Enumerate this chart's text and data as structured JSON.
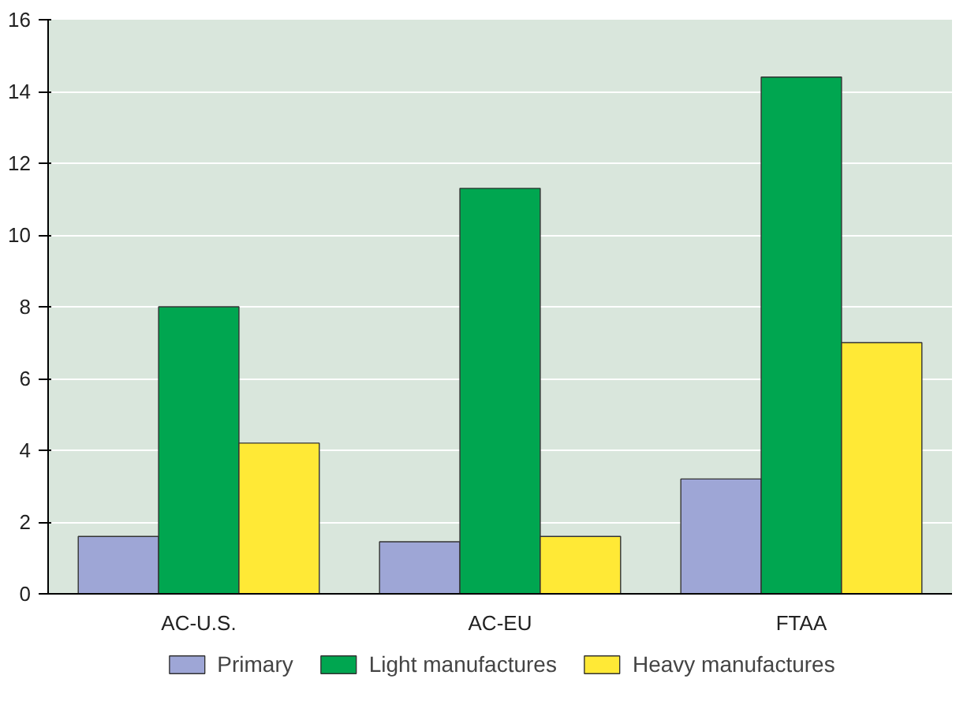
{
  "chart_data": {
    "type": "bar",
    "categories": [
      "AC-U.S.",
      "AC-EU",
      "FTAA"
    ],
    "series": [
      {
        "name": "Primary",
        "color": "#9ea6d6",
        "values": [
          1.6,
          1.45,
          3.2
        ]
      },
      {
        "name": "Light manufactures",
        "color": "#00a650",
        "values": [
          8.0,
          11.3,
          14.4
        ]
      },
      {
        "name": "Heavy manufactures",
        "color": "#ffe936",
        "values": [
          4.2,
          1.6,
          7.0
        ]
      }
    ],
    "ylim": [
      0,
      16
    ],
    "yticks": [
      0,
      2,
      4,
      6,
      8,
      10,
      12,
      14,
      16
    ],
    "grid": "y",
    "legend": "bottom"
  }
}
